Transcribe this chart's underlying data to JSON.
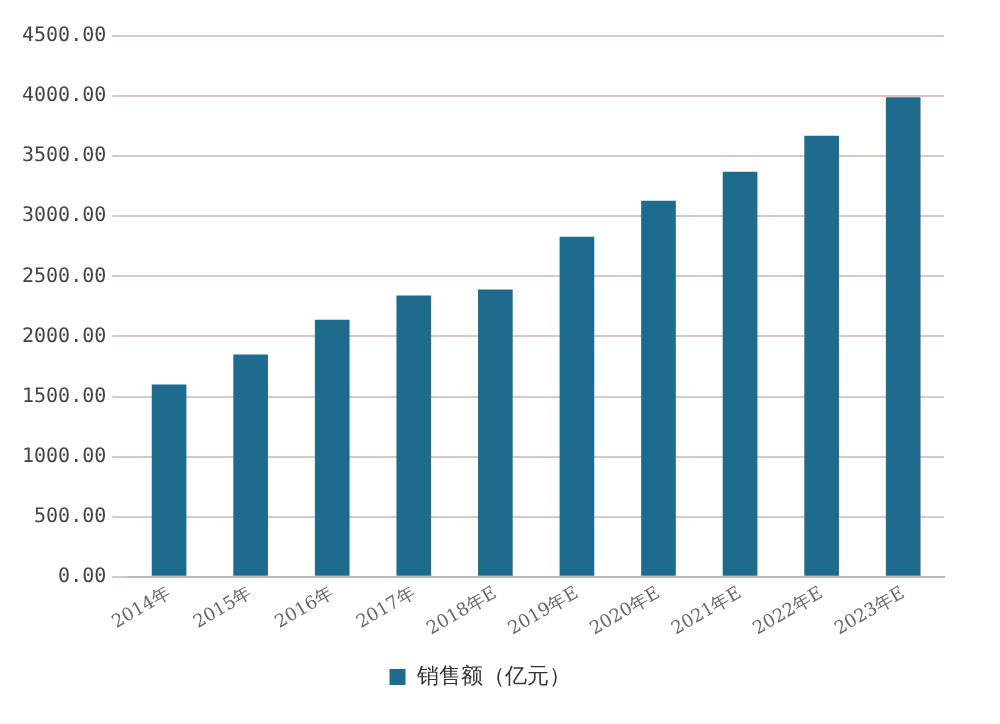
{
  "chart_data": {
    "type": "bar",
    "categories": [
      "2014年",
      "2015年",
      "2016年",
      "2017年",
      "2018年E",
      "2019年E",
      "2020年E",
      "2021年E",
      "2022年E",
      "2023年E"
    ],
    "series": [
      {
        "name": "销售额（亿元）",
        "color": "#1f6b8e",
        "values": [
          1600,
          1850,
          2140,
          2340,
          2390,
          2830,
          3130,
          3370,
          3670,
          3990
        ]
      }
    ],
    "ylim": [
      0,
      4500
    ],
    "yticks": [
      {
        "value": 0,
        "label": "0.00"
      },
      {
        "value": 500,
        "label": "500.00"
      },
      {
        "value": 1000,
        "label": "1000.00"
      },
      {
        "value": 1500,
        "label": "1500.00"
      },
      {
        "value": 2000,
        "label": "2000.00"
      },
      {
        "value": 2500,
        "label": "2500.00"
      },
      {
        "value": 3000,
        "label": "3000.00"
      },
      {
        "value": 3500,
        "label": "3500.00"
      },
      {
        "value": 4000,
        "label": "4000.00"
      },
      {
        "value": 4500,
        "label": "4500.00"
      }
    ],
    "grid": "y",
    "legend": "bottom"
  }
}
